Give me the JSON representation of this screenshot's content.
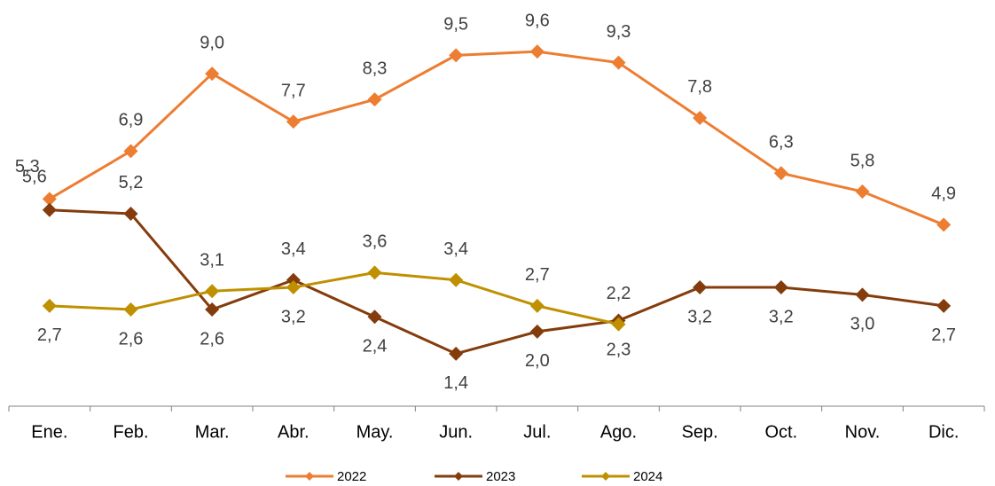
{
  "chart_data": {
    "type": "line",
    "categories": [
      "Ene.",
      "Feb.",
      "Mar.",
      "Abr.",
      "May.",
      "Jun.",
      "Jul.",
      "Ago.",
      "Sep.",
      "Oct.",
      "Nov.",
      "Dic."
    ],
    "ylim": [
      0,
      11
    ],
    "series": [
      {
        "name": "2022",
        "color": "#ED7D31",
        "values": [
          5.6,
          6.9,
          9.0,
          7.7,
          8.3,
          9.5,
          9.6,
          9.3,
          7.8,
          6.3,
          5.8,
          4.9
        ],
        "value_labels": [
          "5,6",
          "6,9",
          "9,0",
          "7,7",
          "8,3",
          "9,5",
          "9,6",
          "9,3",
          "7,8",
          "6,3",
          "5,8",
          "4,9"
        ]
      },
      {
        "name": "2023",
        "color": "#843C0C",
        "values": [
          5.3,
          5.2,
          2.6,
          3.4,
          2.4,
          1.4,
          2.0,
          2.3,
          3.2,
          3.2,
          3.0,
          2.7
        ],
        "value_labels": [
          "5,3",
          "5,2",
          "2,6",
          "3,4",
          "2,4",
          "1,4",
          "2,0",
          "2,3",
          "3,2",
          "3,2",
          "3,0",
          "2,7"
        ]
      },
      {
        "name": "2024",
        "color": "#BF9000",
        "values": [
          2.7,
          2.6,
          3.1,
          3.2,
          3.6,
          3.4,
          2.7,
          2.2,
          null,
          null,
          null,
          null
        ],
        "value_labels": [
          "2,7",
          "2,6",
          "3,1",
          "3,2",
          "3,6",
          "3,4",
          "2,7",
          "2,2",
          null,
          null,
          null,
          null
        ]
      }
    ]
  }
}
